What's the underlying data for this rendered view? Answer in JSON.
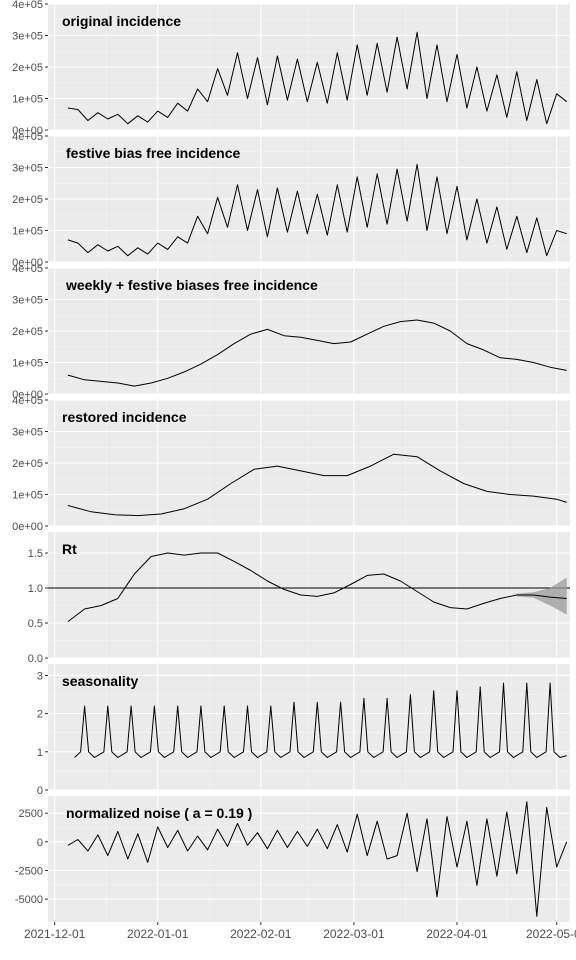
{
  "chart_data": {
    "type": "line",
    "x_axis": {
      "type": "date",
      "range": [
        "2021-11-29",
        "2022-05-05"
      ],
      "tick_labels": [
        "2021-12-01",
        "2022-01-01",
        "2022-02-01",
        "2022-03-01",
        "2022-04-01",
        "2022-05-01"
      ],
      "tick_dates": [
        "2021-12-01",
        "2022-01-01",
        "2022-02-01",
        "2022-03-01",
        "2022-04-01",
        "2022-05-01"
      ]
    },
    "grid": true,
    "background": "#ebebeb",
    "panels": [
      {
        "title": "original incidence",
        "ylim": [
          0,
          400000
        ],
        "y_ticks": [
          0,
          100000,
          200000,
          300000,
          400000
        ],
        "y_tick_labels": [
          "0e+00",
          "1e+05",
          "2e+05",
          "3e+05",
          "4e+05"
        ],
        "x": [
          "2021-12-05",
          "2021-12-08",
          "2021-12-11",
          "2021-12-14",
          "2021-12-17",
          "2021-12-20",
          "2021-12-23",
          "2021-12-26",
          "2021-12-29",
          "2022-01-01",
          "2022-01-04",
          "2022-01-07",
          "2022-01-10",
          "2022-01-13",
          "2022-01-16",
          "2022-01-19",
          "2022-01-22",
          "2022-01-25",
          "2022-01-28",
          "2022-01-31",
          "2022-02-03",
          "2022-02-06",
          "2022-02-09",
          "2022-02-12",
          "2022-02-15",
          "2022-02-18",
          "2022-02-21",
          "2022-02-24",
          "2022-02-27",
          "2022-03-02",
          "2022-03-05",
          "2022-03-08",
          "2022-03-11",
          "2022-03-14",
          "2022-03-17",
          "2022-03-20",
          "2022-03-23",
          "2022-03-26",
          "2022-03-29",
          "2022-04-01",
          "2022-04-04",
          "2022-04-07",
          "2022-04-10",
          "2022-04-13",
          "2022-04-16",
          "2022-04-19",
          "2022-04-22",
          "2022-04-25",
          "2022-04-28",
          "2022-05-01",
          "2022-05-04"
        ],
        "y": [
          70000,
          65000,
          30000,
          55000,
          35000,
          50000,
          20000,
          45000,
          25000,
          60000,
          40000,
          85000,
          60000,
          130000,
          90000,
          195000,
          110000,
          245000,
          100000,
          230000,
          80000,
          235000,
          95000,
          225000,
          90000,
          215000,
          85000,
          245000,
          95000,
          270000,
          110000,
          275000,
          120000,
          295000,
          130000,
          310000,
          100000,
          270000,
          90000,
          240000,
          70000,
          200000,
          60000,
          175000,
          40000,
          185000,
          30000,
          160000,
          20000,
          115000,
          90000
        ]
      },
      {
        "title": "festive bias free incidence",
        "ylim": [
          0,
          400000
        ],
        "y_ticks": [
          0,
          100000,
          200000,
          300000,
          400000
        ],
        "y_tick_labels": [
          "0e+00",
          "1e+05",
          "2e+05",
          "3e+05",
          "4e+05"
        ],
        "x": [
          "2021-12-05",
          "2021-12-08",
          "2021-12-11",
          "2021-12-14",
          "2021-12-17",
          "2021-12-20",
          "2021-12-23",
          "2021-12-26",
          "2021-12-29",
          "2022-01-01",
          "2022-01-04",
          "2022-01-07",
          "2022-01-10",
          "2022-01-13",
          "2022-01-16",
          "2022-01-19",
          "2022-01-22",
          "2022-01-25",
          "2022-01-28",
          "2022-01-31",
          "2022-02-03",
          "2022-02-06",
          "2022-02-09",
          "2022-02-12",
          "2022-02-15",
          "2022-02-18",
          "2022-02-21",
          "2022-02-24",
          "2022-02-27",
          "2022-03-02",
          "2022-03-05",
          "2022-03-08",
          "2022-03-11",
          "2022-03-14",
          "2022-03-17",
          "2022-03-20",
          "2022-03-23",
          "2022-03-26",
          "2022-03-29",
          "2022-04-01",
          "2022-04-04",
          "2022-04-07",
          "2022-04-10",
          "2022-04-13",
          "2022-04-16",
          "2022-04-19",
          "2022-04-22",
          "2022-04-25",
          "2022-04-28",
          "2022-05-01",
          "2022-05-04"
        ],
        "y": [
          70000,
          60000,
          30000,
          55000,
          35000,
          50000,
          20000,
          45000,
          25000,
          60000,
          40000,
          80000,
          60000,
          145000,
          90000,
          205000,
          110000,
          245000,
          100000,
          230000,
          80000,
          235000,
          95000,
          225000,
          90000,
          215000,
          85000,
          245000,
          95000,
          270000,
          110000,
          280000,
          120000,
          295000,
          130000,
          310000,
          100000,
          270000,
          90000,
          240000,
          70000,
          200000,
          60000,
          175000,
          40000,
          145000,
          30000,
          140000,
          20000,
          100000,
          90000
        ]
      },
      {
        "title": "weekly + festive biases free incidence",
        "ylim": [
          0,
          400000
        ],
        "y_ticks": [
          0,
          100000,
          200000,
          300000,
          400000
        ],
        "y_tick_labels": [
          "0e+00",
          "1e+05",
          "2e+05",
          "3e+05",
          "4e+05"
        ],
        "x": [
          "2021-12-05",
          "2021-12-10",
          "2021-12-15",
          "2021-12-20",
          "2021-12-25",
          "2021-12-30",
          "2022-01-04",
          "2022-01-09",
          "2022-01-14",
          "2022-01-19",
          "2022-01-24",
          "2022-01-29",
          "2022-02-03",
          "2022-02-08",
          "2022-02-13",
          "2022-02-18",
          "2022-02-23",
          "2022-02-28",
          "2022-03-05",
          "2022-03-10",
          "2022-03-15",
          "2022-03-20",
          "2022-03-25",
          "2022-03-30",
          "2022-04-04",
          "2022-04-09",
          "2022-04-14",
          "2022-04-19",
          "2022-04-24",
          "2022-04-29",
          "2022-05-04"
        ],
        "y": [
          60000,
          45000,
          40000,
          35000,
          25000,
          35000,
          50000,
          70000,
          95000,
          125000,
          160000,
          190000,
          205000,
          185000,
          180000,
          170000,
          160000,
          165000,
          190000,
          215000,
          230000,
          235000,
          225000,
          200000,
          160000,
          140000,
          115000,
          110000,
          100000,
          85000,
          75000
        ]
      },
      {
        "title": "restored incidence",
        "ylim": [
          0,
          400000
        ],
        "y_ticks": [
          0,
          100000,
          200000,
          300000,
          400000
        ],
        "y_tick_labels": [
          "0e+00",
          "1e+05",
          "2e+05",
          "3e+05",
          "4e+05"
        ],
        "x": [
          "2021-12-05",
          "2021-12-12",
          "2021-12-19",
          "2021-12-26",
          "2022-01-02",
          "2022-01-09",
          "2022-01-16",
          "2022-01-23",
          "2022-01-30",
          "2022-02-06",
          "2022-02-13",
          "2022-02-20",
          "2022-02-27",
          "2022-03-06",
          "2022-03-13",
          "2022-03-20",
          "2022-03-27",
          "2022-04-03",
          "2022-04-10",
          "2022-04-17",
          "2022-04-24",
          "2022-05-01",
          "2022-05-04"
        ],
        "y": [
          65000,
          45000,
          36000,
          33000,
          38000,
          55000,
          85000,
          135000,
          180000,
          190000,
          175000,
          160000,
          160000,
          190000,
          228000,
          220000,
          175000,
          135000,
          110000,
          100000,
          95000,
          85000,
          75000
        ]
      },
      {
        "title": "Rt",
        "ylim": [
          0,
          1.8
        ],
        "y_ticks": [
          0,
          0.5,
          1.0,
          1.5
        ],
        "y_tick_labels": [
          "0.0",
          "0.5",
          "1.0",
          "1.5"
        ],
        "reference_line": 1.0,
        "x": [
          "2021-12-05",
          "2021-12-10",
          "2021-12-15",
          "2021-12-20",
          "2021-12-25",
          "2021-12-30",
          "2022-01-04",
          "2022-01-09",
          "2022-01-14",
          "2022-01-19",
          "2022-01-24",
          "2022-01-29",
          "2022-02-03",
          "2022-02-08",
          "2022-02-13",
          "2022-02-18",
          "2022-02-23",
          "2022-02-28",
          "2022-03-05",
          "2022-03-10",
          "2022-03-15",
          "2022-03-20",
          "2022-03-25",
          "2022-03-30",
          "2022-04-04",
          "2022-04-09",
          "2022-04-14",
          "2022-04-19",
          "2022-04-24",
          "2022-04-29",
          "2022-05-04"
        ],
        "y": [
          0.52,
          0.7,
          0.75,
          0.85,
          1.2,
          1.45,
          1.5,
          1.47,
          1.5,
          1.5,
          1.38,
          1.25,
          1.1,
          0.98,
          0.9,
          0.88,
          0.93,
          1.05,
          1.18,
          1.2,
          1.1,
          0.95,
          0.8,
          0.72,
          0.7,
          0.78,
          0.85,
          0.9,
          0.9,
          0.87,
          0.85
        ],
        "ribbon": {
          "x": [
            "2022-04-19",
            "2022-04-24",
            "2022-04-29",
            "2022-05-04"
          ],
          "lower": [
            0.88,
            0.86,
            0.75,
            0.62
          ],
          "upper": [
            0.92,
            0.94,
            1.0,
            1.15
          ]
        }
      },
      {
        "title": "seasonality",
        "ylim": [
          0,
          3.3
        ],
        "y_ticks": [
          0,
          1,
          2,
          3
        ],
        "y_tick_labels": [
          "0",
          "1",
          "2",
          "3"
        ],
        "period_days": 7,
        "first_peak": "2021-12-10",
        "peak_values": [
          2.2,
          2.2,
          2.2,
          2.2,
          2.2,
          2.2,
          2.2,
          2.2,
          2.2,
          2.3,
          2.3,
          2.3,
          2.4,
          2.4,
          2.5,
          2.6,
          2.6,
          2.7,
          2.8,
          2.8,
          2.8
        ],
        "trough_value": 0.85
      },
      {
        "title": "normalized noise ( a =  0.19 )",
        "ylim": [
          -7000,
          4000
        ],
        "y_ticks": [
          -5000,
          -2500,
          0,
          2500
        ],
        "y_tick_labels": [
          "-5000",
          "-2500",
          "0",
          "2500"
        ],
        "x": [
          "2021-12-05",
          "2021-12-08",
          "2021-12-11",
          "2021-12-14",
          "2021-12-17",
          "2021-12-20",
          "2021-12-23",
          "2021-12-26",
          "2021-12-29",
          "2022-01-01",
          "2022-01-04",
          "2022-01-07",
          "2022-01-10",
          "2022-01-13",
          "2022-01-16",
          "2022-01-19",
          "2022-01-22",
          "2022-01-25",
          "2022-01-28",
          "2022-01-31",
          "2022-02-03",
          "2022-02-06",
          "2022-02-09",
          "2022-02-12",
          "2022-02-15",
          "2022-02-18",
          "2022-02-21",
          "2022-02-24",
          "2022-02-27",
          "2022-03-02",
          "2022-03-05",
          "2022-03-08",
          "2022-03-11",
          "2022-03-14",
          "2022-03-17",
          "2022-03-20",
          "2022-03-23",
          "2022-03-26",
          "2022-03-29",
          "2022-04-01",
          "2022-04-04",
          "2022-04-07",
          "2022-04-10",
          "2022-04-13",
          "2022-04-16",
          "2022-04-19",
          "2022-04-22",
          "2022-04-25",
          "2022-04-28",
          "2022-05-01",
          "2022-05-04"
        ],
        "y": [
          -300,
          200,
          -800,
          600,
          -1200,
          900,
          -1500,
          700,
          -1800,
          1300,
          -500,
          1000,
          -800,
          500,
          -700,
          1100,
          -400,
          1600,
          -300,
          800,
          -600,
          1000,
          -500,
          900,
          -400,
          1100,
          -600,
          1500,
          -900,
          2400,
          -1200,
          1800,
          -1500,
          -1200,
          2500,
          -2600,
          2000,
          -4800,
          2200,
          -2200,
          1800,
          -3800,
          2000,
          -3000,
          2600,
          -2800,
          3500,
          -6500,
          3000,
          -2200,
          0
        ]
      }
    ]
  }
}
